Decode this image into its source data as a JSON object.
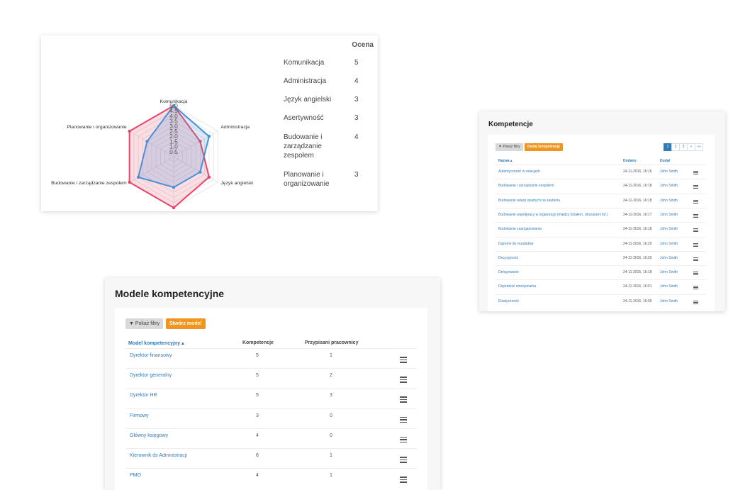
{
  "radar": {
    "score_header": "Ocena",
    "scores": [
      {
        "label": "Komunikacja",
        "value": "5"
      },
      {
        "label": "Administracja",
        "value": "4"
      },
      {
        "label": "Język angielski",
        "value": "3"
      },
      {
        "label": "Asertywność",
        "value": "3"
      },
      {
        "label": "Budowanie i zarządzanie zespołem",
        "value": "4"
      },
      {
        "label": "Planowanie i organizowanie",
        "value": "3"
      }
    ],
    "colors": {
      "red": "#e8456b",
      "blue": "#4a90d9",
      "grid": "#dddddd"
    }
  },
  "chart_data": {
    "type": "radar",
    "categories": [
      "Komunikacja",
      "Administracja",
      "Język angielski",
      "Asertywność",
      "Budowanie i zarządzanie zespołem",
      "Planowanie i organizowanie"
    ],
    "tick_labels": [
      "0.5",
      "1.0",
      "1.5",
      "2.0",
      "2.5",
      "3.0",
      "3.5",
      "4.0",
      "4.5",
      "5.0"
    ],
    "range": [
      0,
      5
    ],
    "series": [
      {
        "values": [
          5,
          3,
          4,
          5,
          5,
          5
        ],
        "color": "#e8456b"
      },
      {
        "values": [
          5,
          4,
          3,
          3,
          4,
          3
        ],
        "color": "#4a90d9"
      }
    ]
  },
  "kompetencje": {
    "title": "Kompetencje",
    "filter_btn": "▼ Pokaż filtry",
    "add_btn": "Dodaj kompetencję",
    "pager": [
      "1",
      "2",
      "3",
      "»",
      "»»"
    ],
    "headers": {
      "name": "Nazwa ▴",
      "added": "Dodano",
      "by": "Dodał"
    },
    "rows": [
      {
        "name": "Autentyczność w relacjach",
        "date": "24-11-2016, 16:16",
        "by": "John Smith"
      },
      {
        "name": "Budowanie i zarządzanie zespołem",
        "date": "24-11-2016, 16:18",
        "by": "John Smith"
      },
      {
        "name": "Budowanie relacji opartych na zaufaniu",
        "date": "24-11-2016, 16:18",
        "by": "John Smith"
      },
      {
        "name": "Budowanie współpracy w organizacji (między działem, obszarami itd.)",
        "date": "24-11-2016, 16:17",
        "by": "John Smith"
      },
      {
        "name": "Budowanie zaangażowania",
        "date": "24-11-2016, 16:18",
        "by": "John Smith"
      },
      {
        "name": "Dążenie do rezultatów",
        "date": "24-11-2016, 16:20",
        "by": "John Smith"
      },
      {
        "name": "Decyzyjność",
        "date": "24-11-2016, 16:20",
        "by": "John Smith"
      },
      {
        "name": "Delegowanie",
        "date": "24-11-2016, 16:18",
        "by": "John Smith"
      },
      {
        "name": "Dojrzałość emocjonalna",
        "date": "24-11-2016, 16:01",
        "by": "John Smith"
      },
      {
        "name": "Elastyczność",
        "date": "24-11-2016, 16:00",
        "by": "John Smith"
      }
    ]
  },
  "modele": {
    "title": "Modele kompetencyjne",
    "filter_btn": "▼ Pokaż filtry",
    "create_btn": "Stwórz model",
    "headers": {
      "model": "Model kompetencyjny ▴",
      "komp": "Kompetencje",
      "prac": "Przypisani pracownicy"
    },
    "rows": [
      {
        "name": "Dyrektor finansowy",
        "komp": "5",
        "prac": "1"
      },
      {
        "name": "Dyrektor generalny",
        "komp": "5",
        "prac": "2"
      },
      {
        "name": "Dyrektor HR",
        "komp": "5",
        "prac": "3"
      },
      {
        "name": "Firmowy",
        "komp": "3",
        "prac": "0"
      },
      {
        "name": "Główny księgowy",
        "komp": "4",
        "prac": "0"
      },
      {
        "name": "Kierownik ds Administracji",
        "komp": "6",
        "prac": "1"
      },
      {
        "name": "PMO",
        "komp": "4",
        "prac": "1"
      }
    ]
  }
}
